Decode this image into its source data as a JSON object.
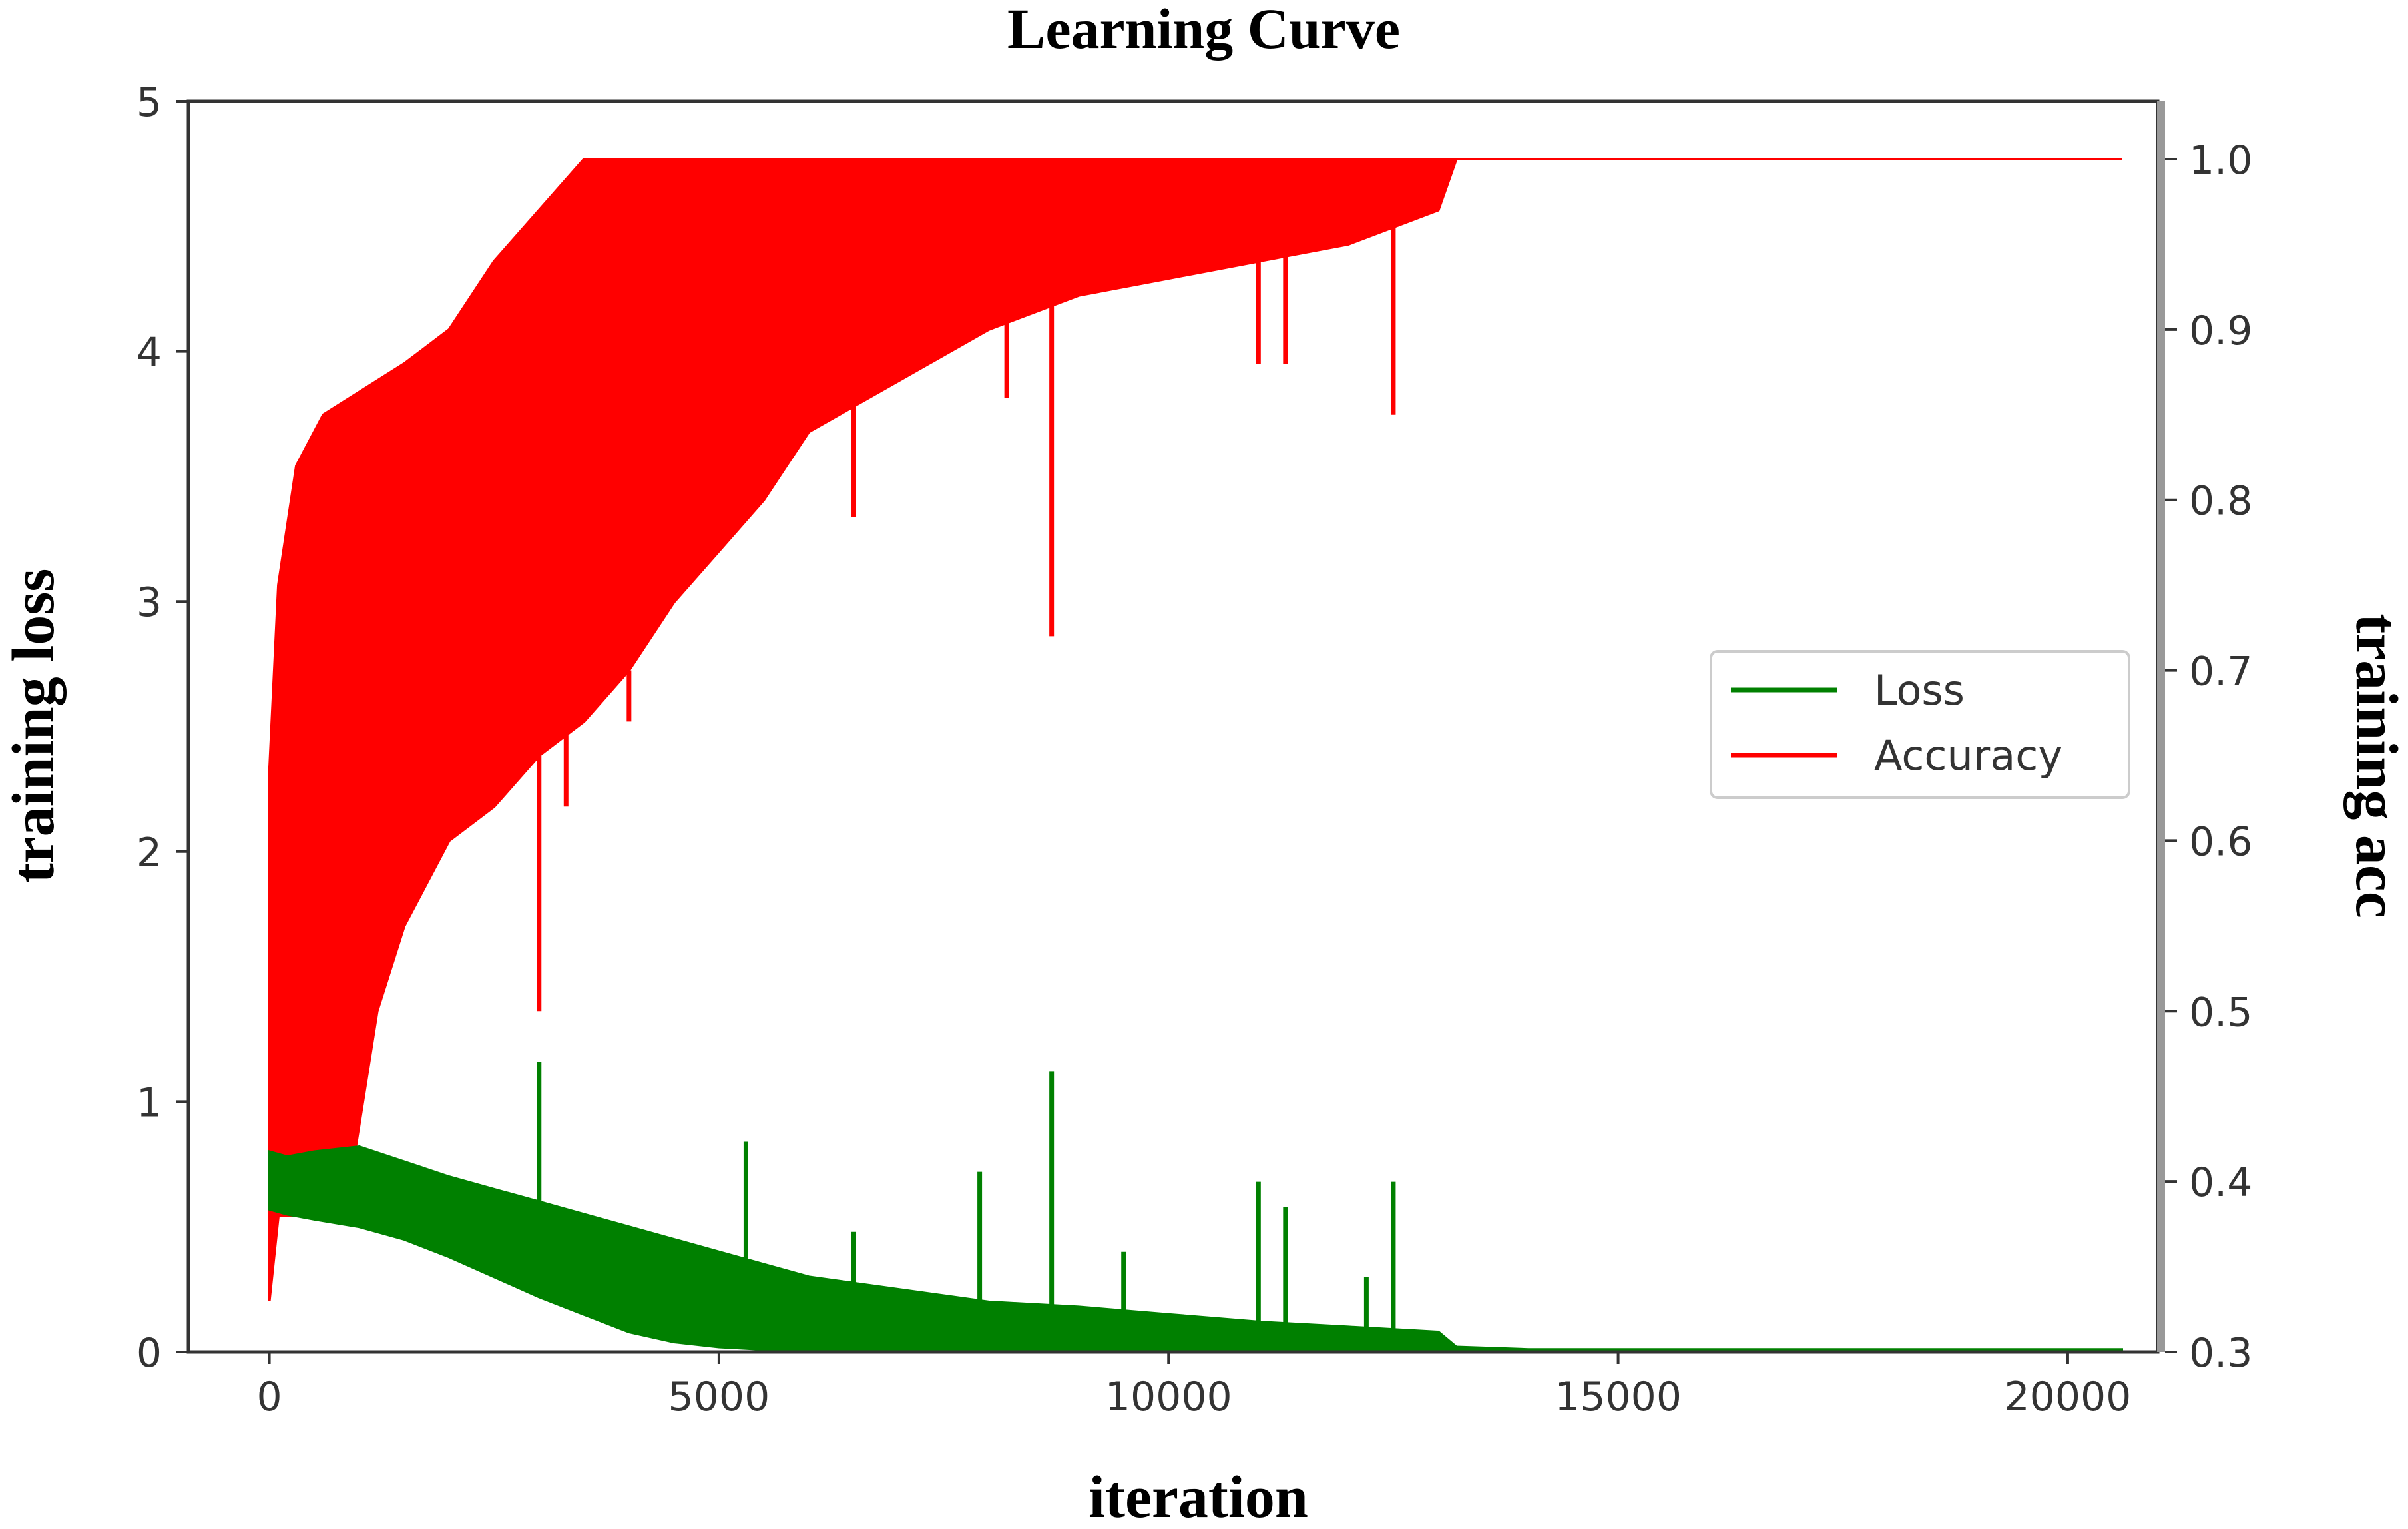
{
  "chart_data": {
    "type": "line",
    "title": "Learning Curve",
    "xlabel": "iteration",
    "ylabel_left": "training loss",
    "ylabel_right": "training acc",
    "xlim": [
      -900,
      21000
    ],
    "ylim_left": [
      0,
      5
    ],
    "ylim_right": [
      0.3,
      1.034
    ],
    "x_ticks": [
      "0",
      "5000",
      "10000",
      "15000",
      "20000"
    ],
    "y_left_ticks": [
      "0",
      "1",
      "2",
      "3",
      "4",
      "5"
    ],
    "y_right_ticks": [
      "0.3",
      "0.4",
      "0.5",
      "0.6",
      "0.7",
      "0.8",
      "0.9",
      "1.0"
    ],
    "grid": false,
    "legend_position": "center-right",
    "series": [
      {
        "name": "Loss",
        "axis": "left",
        "color": "#008000",
        "envelope": {
          "x": [
            0,
            200,
            500,
            1000,
            1500,
            2000,
            2500,
            3000,
            3500,
            4000,
            4500,
            5000,
            5500,
            6000,
            7000,
            8000,
            9000,
            10000,
            11000,
            12000,
            13000,
            13200,
            14000,
            20600
          ],
          "low": [
            0.57,
            0.55,
            0.53,
            0.5,
            0.45,
            0.38,
            0.3,
            0.22,
            0.15,
            0.08,
            0.04,
            0.02,
            0.01,
            0.0,
            0.0,
            0.0,
            0.0,
            0.0,
            0.0,
            0.0,
            0.0,
            0.0,
            0.0,
            0.0
          ],
          "high": [
            0.8,
            0.78,
            0.8,
            0.82,
            0.76,
            0.7,
            0.65,
            0.6,
            0.55,
            0.5,
            0.45,
            0.4,
            0.35,
            0.3,
            0.25,
            0.2,
            0.18,
            0.15,
            0.12,
            0.1,
            0.08,
            0.02,
            0.01,
            0.01
          ]
        },
        "spikes": [
          {
            "x": 50,
            "value": 0.72
          },
          {
            "x": 3000,
            "value": 1.16
          },
          {
            "x": 5300,
            "value": 0.84
          },
          {
            "x": 6500,
            "value": 0.48
          },
          {
            "x": 7900,
            "value": 0.72
          },
          {
            "x": 8700,
            "value": 1.12
          },
          {
            "x": 9500,
            "value": 0.4
          },
          {
            "x": 11000,
            "value": 0.68
          },
          {
            "x": 11300,
            "value": 0.58
          },
          {
            "x": 12200,
            "value": 0.3
          },
          {
            "x": 12500,
            "value": 0.68
          }
        ]
      },
      {
        "name": "Accuracy",
        "axis": "right",
        "color": "#ff0000",
        "envelope": {
          "x": [
            0,
            100,
            300,
            600,
            900,
            1200,
            1500,
            2000,
            2500,
            3000,
            3500,
            4000,
            4500,
            5000,
            5500,
            6000,
            7000,
            8000,
            9000,
            10000,
            11000,
            12000,
            13000,
            13200,
            20600
          ],
          "low": [
            0.33,
            0.38,
            0.38,
            0.38,
            0.4,
            0.5,
            0.55,
            0.6,
            0.62,
            0.65,
            0.67,
            0.7,
            0.74,
            0.77,
            0.8,
            0.84,
            0.87,
            0.9,
            0.92,
            0.93,
            0.94,
            0.95,
            0.97,
            1.0,
            1.0
          ],
          "high": [
            0.64,
            0.75,
            0.82,
            0.85,
            0.86,
            0.87,
            0.88,
            0.9,
            0.94,
            0.97,
            1.0,
            1.0,
            1.0,
            1.0,
            1.0,
            1.0,
            1.0,
            1.0,
            1.0,
            1.0,
            1.0,
            1.0,
            1.0,
            1.0,
            1.0
          ]
        },
        "dips": [
          {
            "x": 3000,
            "value": 0.5
          },
          {
            "x": 3300,
            "value": 0.62
          },
          {
            "x": 4000,
            "value": 0.67
          },
          {
            "x": 6500,
            "value": 0.79
          },
          {
            "x": 8200,
            "value": 0.86
          },
          {
            "x": 8700,
            "value": 0.72
          },
          {
            "x": 11000,
            "value": 0.88
          },
          {
            "x": 11300,
            "value": 0.88
          },
          {
            "x": 12500,
            "value": 0.85
          }
        ]
      }
    ]
  }
}
